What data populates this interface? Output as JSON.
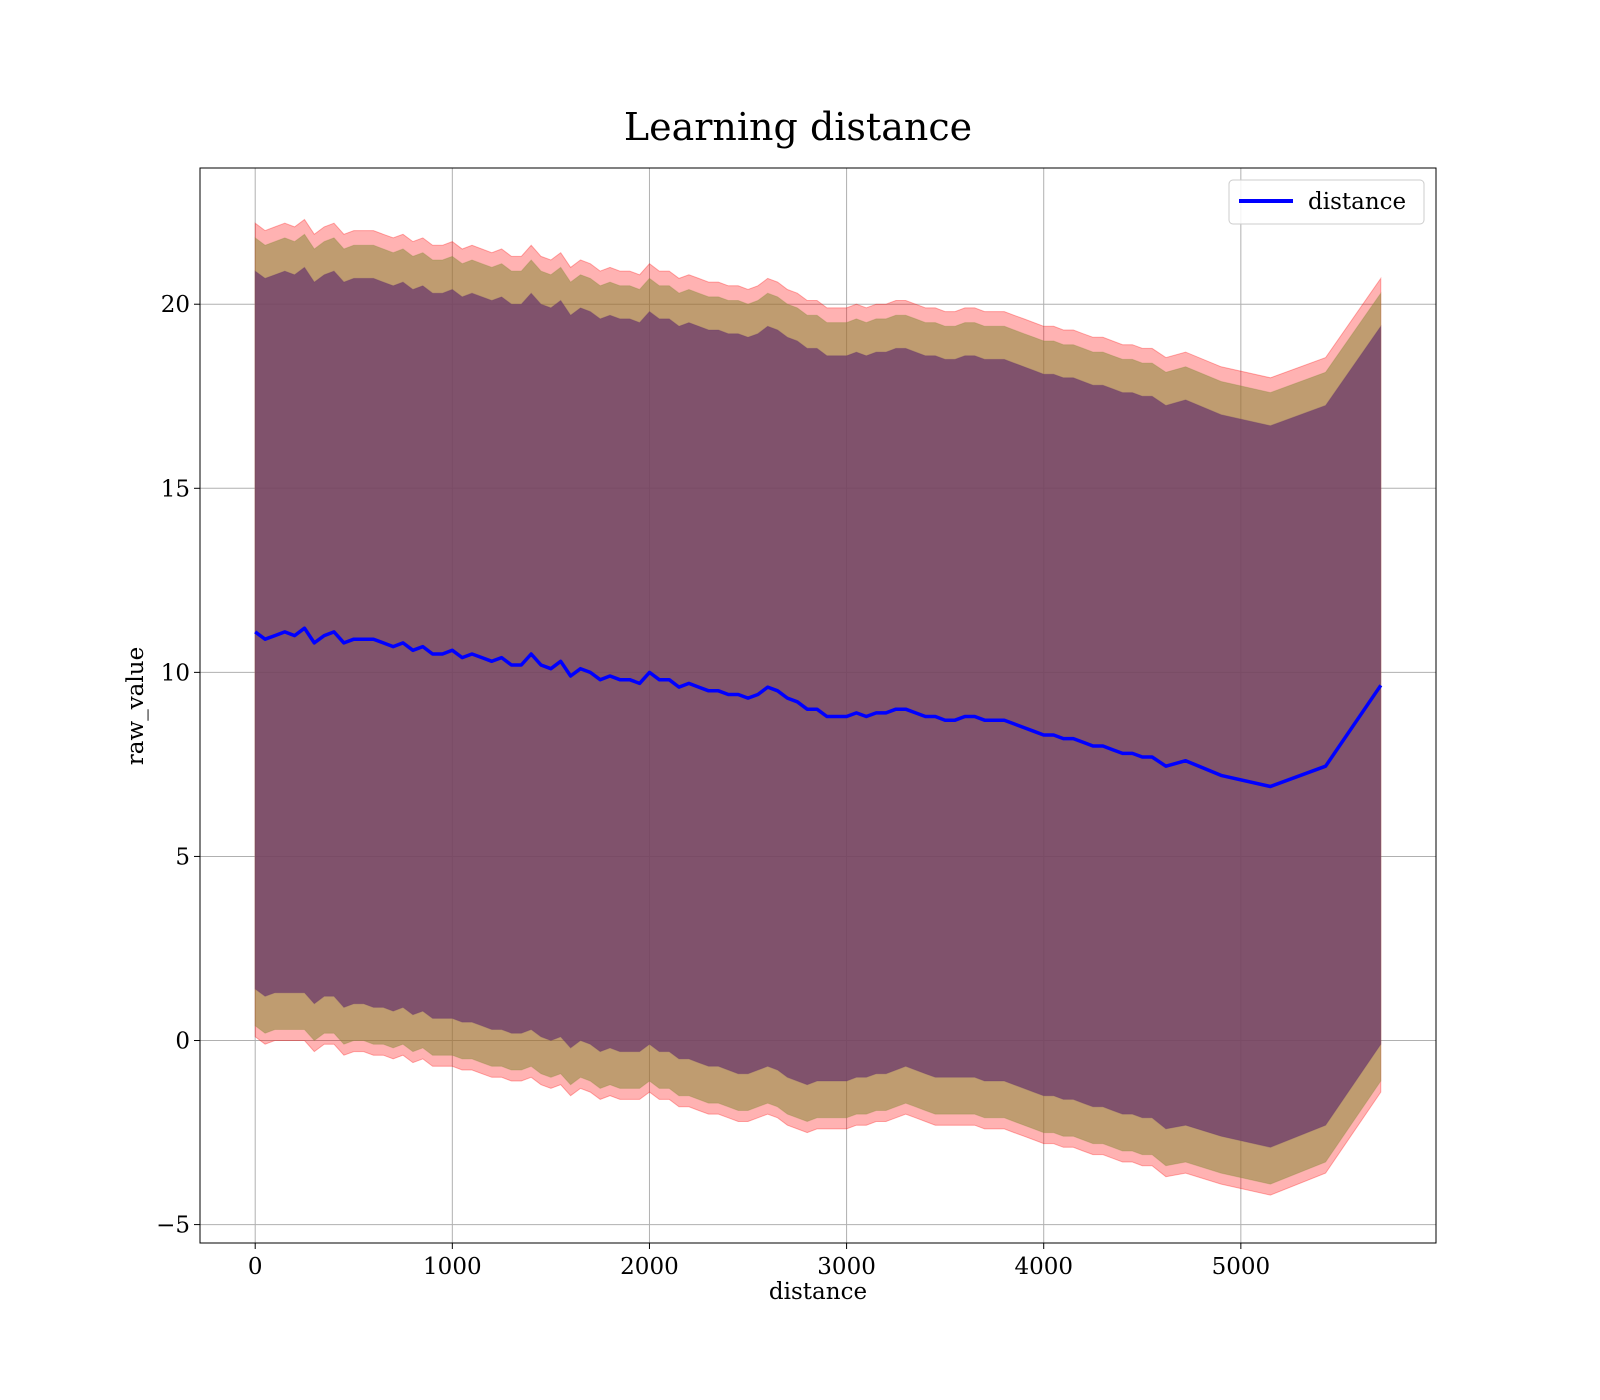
{
  "chart_data": {
    "type": "line",
    "title": "Learning distance",
    "xlabel": "distance",
    "ylabel": "raw_value",
    "xlim": [
      -280,
      5990
    ],
    "ylim": [
      -5.5,
      23.7
    ],
    "xticks": [
      0,
      1000,
      2000,
      3000,
      4000,
      5000
    ],
    "yticks": [
      -5,
      0,
      5,
      10,
      15,
      20
    ],
    "grid": true,
    "legend_position": "top-right",
    "colors": {
      "line": "#0000ff",
      "band_outer": "#ff0000",
      "band_mid": "#8b8b3a",
      "band_inner": "#6b3a6b"
    },
    "series": [
      {
        "name": "distance",
        "x": [
          0,
          50,
          100,
          150,
          200,
          250,
          300,
          350,
          400,
          450,
          500,
          550,
          600,
          650,
          700,
          750,
          800,
          850,
          900,
          950,
          1000,
          1050,
          1100,
          1150,
          1200,
          1250,
          1300,
          1350,
          1400,
          1450,
          1500,
          1550,
          1600,
          1650,
          1700,
          1750,
          1800,
          1850,
          1900,
          1950,
          2000,
          2050,
          2100,
          2150,
          2200,
          2250,
          2300,
          2350,
          2400,
          2450,
          2500,
          2550,
          2600,
          2650,
          2700,
          2750,
          2800,
          2850,
          2900,
          2950,
          3000,
          3050,
          3100,
          3150,
          3200,
          3250,
          3300,
          3350,
          3400,
          3450,
          3500,
          3550,
          3600,
          3650,
          3700,
          3750,
          3800,
          3850,
          3900,
          3950,
          4000,
          4050,
          4100,
          4150,
          4200,
          4250,
          4300,
          4350,
          4400,
          4450,
          4500,
          4550,
          4620,
          4720,
          4900,
          5150,
          5430,
          5710
        ],
        "y": [
          11.1,
          10.9,
          11.0,
          11.1,
          11.0,
          11.2,
          10.8,
          11.0,
          11.1,
          10.8,
          10.9,
          10.9,
          10.9,
          10.8,
          10.7,
          10.8,
          10.6,
          10.7,
          10.5,
          10.5,
          10.6,
          10.4,
          10.5,
          10.4,
          10.3,
          10.4,
          10.2,
          10.2,
          10.5,
          10.2,
          10.1,
          10.3,
          9.9,
          10.1,
          10.0,
          9.8,
          9.9,
          9.8,
          9.8,
          9.7,
          10.0,
          9.8,
          9.8,
          9.6,
          9.7,
          9.6,
          9.5,
          9.5,
          9.4,
          9.4,
          9.3,
          9.4,
          9.6,
          9.5,
          9.3,
          9.2,
          9.0,
          9.0,
          8.8,
          8.8,
          8.8,
          8.9,
          8.8,
          8.9,
          8.9,
          9.0,
          9.0,
          8.9,
          8.8,
          8.8,
          8.7,
          8.7,
          8.8,
          8.8,
          8.7,
          8.7,
          8.7,
          8.6,
          8.5,
          8.4,
          8.3,
          8.3,
          8.2,
          8.2,
          8.1,
          8.0,
          8.0,
          7.9,
          7.8,
          7.8,
          7.7,
          7.7,
          7.45,
          7.6,
          7.2,
          6.9,
          7.45,
          9.65
        ],
        "inner_lower": [
          1.4,
          1.2,
          1.3,
          1.3,
          1.3,
          1.3,
          1.0,
          1.2,
          1.2,
          0.9,
          1.0,
          1.0,
          0.9,
          0.9,
          0.8,
          0.9,
          0.7,
          0.8,
          0.6,
          0.6,
          0.6,
          0.5,
          0.5,
          0.4,
          0.3,
          0.3,
          0.2,
          0.2,
          0.3,
          0.1,
          0.0,
          0.1,
          -0.2,
          0.0,
          -0.1,
          -0.3,
          -0.2,
          -0.3,
          -0.3,
          -0.3,
          -0.1,
          -0.3,
          -0.3,
          -0.5,
          -0.5,
          -0.6,
          -0.7,
          -0.7,
          -0.8,
          -0.9,
          -0.9,
          -0.8,
          -0.7,
          -0.8,
          -1.0,
          -1.1,
          -1.2,
          -1.1,
          -1.1,
          -1.1,
          -1.1,
          -1.0,
          -1.0,
          -0.9,
          -0.9,
          -0.8,
          -0.7,
          -0.8,
          -0.9,
          -1.0,
          -1.0,
          -1.0,
          -1.0,
          -1.0,
          -1.1,
          -1.1,
          -1.1,
          -1.2,
          -1.3,
          -1.4,
          -1.5,
          -1.5,
          -1.6,
          -1.6,
          -1.7,
          -1.8,
          -1.8,
          -1.9,
          -2.0,
          -2.0,
          -2.1,
          -2.1,
          -2.4,
          -2.3,
          -2.6,
          -2.9,
          -2.3,
          -0.1
        ],
        "inner_upper": [
          20.9,
          20.7,
          20.8,
          20.9,
          20.8,
          21.0,
          20.6,
          20.8,
          20.9,
          20.6,
          20.7,
          20.7,
          20.7,
          20.6,
          20.5,
          20.6,
          20.4,
          20.5,
          20.3,
          20.3,
          20.4,
          20.2,
          20.3,
          20.2,
          20.1,
          20.2,
          20.0,
          20.0,
          20.3,
          20.0,
          19.9,
          20.1,
          19.7,
          19.9,
          19.8,
          19.6,
          19.7,
          19.6,
          19.6,
          19.5,
          19.8,
          19.6,
          19.6,
          19.4,
          19.5,
          19.4,
          19.3,
          19.3,
          19.2,
          19.2,
          19.1,
          19.2,
          19.4,
          19.3,
          19.1,
          19.0,
          18.8,
          18.8,
          18.6,
          18.6,
          18.6,
          18.7,
          18.6,
          18.7,
          18.7,
          18.8,
          18.8,
          18.7,
          18.6,
          18.6,
          18.5,
          18.5,
          18.6,
          18.6,
          18.5,
          18.5,
          18.5,
          18.4,
          18.3,
          18.2,
          18.1,
          18.1,
          18.0,
          18.0,
          17.9,
          17.8,
          17.8,
          17.7,
          17.6,
          17.6,
          17.5,
          17.5,
          17.25,
          17.4,
          17.0,
          16.7,
          17.25,
          19.4
        ],
        "mid_lower": [
          0.4,
          0.2,
          0.3,
          0.3,
          0.3,
          0.3,
          0.0,
          0.2,
          0.2,
          -0.1,
          0.0,
          0.0,
          -0.1,
          -0.1,
          -0.2,
          -0.1,
          -0.3,
          -0.2,
          -0.4,
          -0.4,
          -0.4,
          -0.5,
          -0.5,
          -0.6,
          -0.7,
          -0.7,
          -0.8,
          -0.8,
          -0.7,
          -0.9,
          -1.0,
          -0.9,
          -1.2,
          -1.0,
          -1.1,
          -1.3,
          -1.2,
          -1.3,
          -1.3,
          -1.3,
          -1.1,
          -1.3,
          -1.3,
          -1.5,
          -1.5,
          -1.6,
          -1.7,
          -1.7,
          -1.8,
          -1.9,
          -1.9,
          -1.8,
          -1.7,
          -1.8,
          -2.0,
          -2.1,
          -2.2,
          -2.1,
          -2.1,
          -2.1,
          -2.1,
          -2.0,
          -2.0,
          -1.9,
          -1.9,
          -1.8,
          -1.7,
          -1.8,
          -1.9,
          -2.0,
          -2.0,
          -2.0,
          -2.0,
          -2.0,
          -2.1,
          -2.1,
          -2.1,
          -2.2,
          -2.3,
          -2.4,
          -2.5,
          -2.5,
          -2.6,
          -2.6,
          -2.7,
          -2.8,
          -2.8,
          -2.9,
          -3.0,
          -3.0,
          -3.1,
          -3.1,
          -3.4,
          -3.3,
          -3.6,
          -3.9,
          -3.3,
          -1.1
        ],
        "mid_upper": [
          21.8,
          21.6,
          21.7,
          21.8,
          21.7,
          21.9,
          21.5,
          21.7,
          21.8,
          21.5,
          21.6,
          21.6,
          21.6,
          21.5,
          21.4,
          21.5,
          21.3,
          21.4,
          21.2,
          21.2,
          21.3,
          21.1,
          21.2,
          21.1,
          21.0,
          21.1,
          20.9,
          20.9,
          21.2,
          20.9,
          20.8,
          21.0,
          20.6,
          20.8,
          20.7,
          20.5,
          20.6,
          20.5,
          20.5,
          20.4,
          20.7,
          20.5,
          20.5,
          20.3,
          20.4,
          20.3,
          20.2,
          20.2,
          20.1,
          20.1,
          20.0,
          20.1,
          20.3,
          20.2,
          20.0,
          19.9,
          19.7,
          19.7,
          19.5,
          19.5,
          19.5,
          19.6,
          19.5,
          19.6,
          19.6,
          19.7,
          19.7,
          19.6,
          19.5,
          19.5,
          19.4,
          19.4,
          19.5,
          19.5,
          19.4,
          19.4,
          19.4,
          19.3,
          19.2,
          19.1,
          19.0,
          19.0,
          18.9,
          18.9,
          18.8,
          18.7,
          18.7,
          18.6,
          18.5,
          18.5,
          18.4,
          18.4,
          18.15,
          18.3,
          17.9,
          17.6,
          18.15,
          20.3
        ],
        "outer_lower": [
          0.1,
          -0.1,
          0.0,
          0.0,
          0.0,
          0.0,
          -0.3,
          -0.1,
          -0.1,
          -0.4,
          -0.3,
          -0.3,
          -0.4,
          -0.4,
          -0.5,
          -0.4,
          -0.6,
          -0.5,
          -0.7,
          -0.7,
          -0.7,
          -0.8,
          -0.8,
          -0.9,
          -1.0,
          -1.0,
          -1.1,
          -1.1,
          -1.0,
          -1.2,
          -1.3,
          -1.2,
          -1.5,
          -1.3,
          -1.4,
          -1.6,
          -1.5,
          -1.6,
          -1.6,
          -1.6,
          -1.4,
          -1.6,
          -1.6,
          -1.8,
          -1.8,
          -1.9,
          -2.0,
          -2.0,
          -2.1,
          -2.2,
          -2.2,
          -2.1,
          -2.0,
          -2.1,
          -2.3,
          -2.4,
          -2.5,
          -2.4,
          -2.4,
          -2.4,
          -2.4,
          -2.3,
          -2.3,
          -2.2,
          -2.2,
          -2.1,
          -2.0,
          -2.1,
          -2.2,
          -2.3,
          -2.3,
          -2.3,
          -2.3,
          -2.3,
          -2.4,
          -2.4,
          -2.4,
          -2.5,
          -2.6,
          -2.7,
          -2.8,
          -2.8,
          -2.9,
          -2.9,
          -3.0,
          -3.1,
          -3.1,
          -3.2,
          -3.3,
          -3.3,
          -3.4,
          -3.4,
          -3.7,
          -3.6,
          -3.9,
          -4.2,
          -3.6,
          -1.4
        ],
        "outer_upper": [
          22.2,
          22.0,
          22.1,
          22.2,
          22.1,
          22.3,
          21.9,
          22.1,
          22.2,
          21.9,
          22.0,
          22.0,
          22.0,
          21.9,
          21.8,
          21.9,
          21.7,
          21.8,
          21.6,
          21.6,
          21.7,
          21.5,
          21.6,
          21.5,
          21.4,
          21.5,
          21.3,
          21.3,
          21.6,
          21.3,
          21.2,
          21.4,
          21.0,
          21.2,
          21.1,
          20.9,
          21.0,
          20.9,
          20.9,
          20.8,
          21.1,
          20.9,
          20.9,
          20.7,
          20.8,
          20.7,
          20.6,
          20.6,
          20.5,
          20.5,
          20.4,
          20.5,
          20.7,
          20.6,
          20.4,
          20.3,
          20.1,
          20.1,
          19.9,
          19.9,
          19.9,
          20.0,
          19.9,
          20.0,
          20.0,
          20.1,
          20.1,
          20.0,
          19.9,
          19.9,
          19.8,
          19.8,
          19.9,
          19.9,
          19.8,
          19.8,
          19.8,
          19.7,
          19.6,
          19.5,
          19.4,
          19.4,
          19.3,
          19.3,
          19.2,
          19.1,
          19.1,
          19.0,
          18.9,
          18.9,
          18.8,
          18.8,
          18.55,
          18.7,
          18.3,
          18.0,
          18.55,
          20.7
        ]
      }
    ]
  }
}
